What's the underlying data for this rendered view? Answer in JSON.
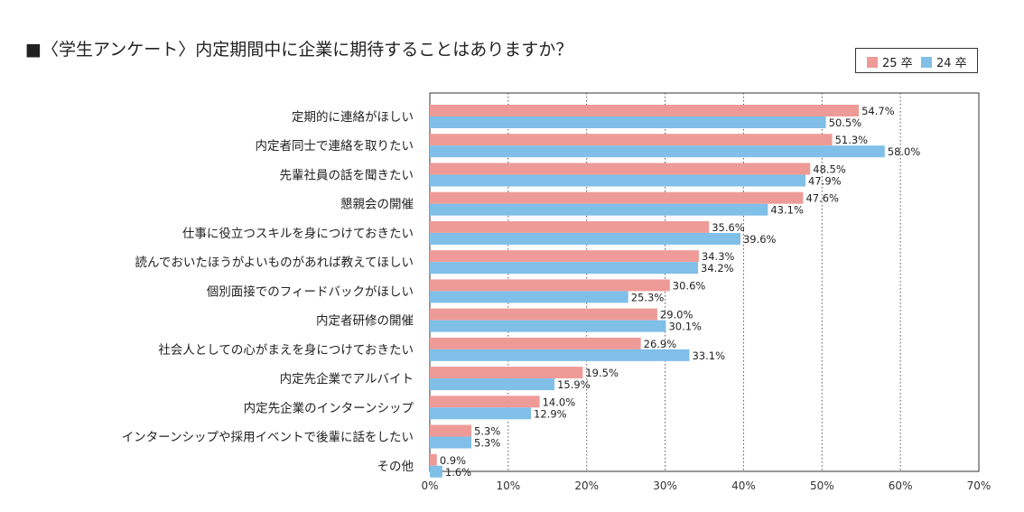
{
  "chart_data": {
    "type": "bar",
    "orientation": "horizontal",
    "title": "■〈学生アンケート〉内定期間中に企業に期待することはありますか？",
    "categories": [
      "定期的に連絡がほしい",
      "内定者同士で連絡を取りたい",
      "先輩社員の話を聞きたい",
      "懇親会の開催",
      "仕事に役立つスキルを身につけておきたい",
      "読んでおいたほうがよいものがあれば教えてほしい",
      "個別面接でのフィードバックがほしい",
      "内定者研修の開催",
      "社会人としての心がまえを身につけておきたい",
      "内定先企業でアルバイト",
      "内定先企業のインターンシップ",
      "インターンシップや採用イベントで後輩に話をしたい",
      "その他"
    ],
    "series": [
      {
        "name": "25 卒",
        "color": "#ee9b98",
        "values": [
          54.7,
          51.3,
          48.5,
          47.6,
          35.6,
          34.3,
          30.6,
          29.0,
          26.9,
          19.5,
          14.0,
          5.3,
          0.9
        ],
        "labels": [
          "54.7%",
          "51.3%",
          "48.5%",
          "47.6%",
          "35.6%",
          "34.3%",
          "30.6%",
          "29.0%",
          "26.9%",
          "19.5%",
          "14.0%",
          "5.3%",
          "0.9%"
        ]
      },
      {
        "name": "24 卒",
        "color": "#7fbfe8",
        "values": [
          50.5,
          58.0,
          47.9,
          43.1,
          39.6,
          34.2,
          25.3,
          30.1,
          33.1,
          15.9,
          12.9,
          5.3,
          1.6
        ],
        "labels": [
          "50.5%",
          "58.0%",
          "47.9%",
          "43.1%",
          "39.6%",
          "34.2%",
          "25.3%",
          "30.1%",
          "33.1%",
          "15.9%",
          "12.9%",
          "5.3%",
          "1.6%"
        ]
      }
    ],
    "xlim": [
      0,
      70
    ],
    "xticks": [
      0,
      10,
      20,
      30,
      40,
      50,
      60,
      70
    ],
    "xtick_labels": [
      "0%",
      "10%",
      "20%",
      "30%",
      "40%",
      "50%",
      "60%",
      "70%"
    ],
    "grid": "vertical dotted",
    "legend_position": "top-right",
    "xlabel": "",
    "ylabel": ""
  }
}
